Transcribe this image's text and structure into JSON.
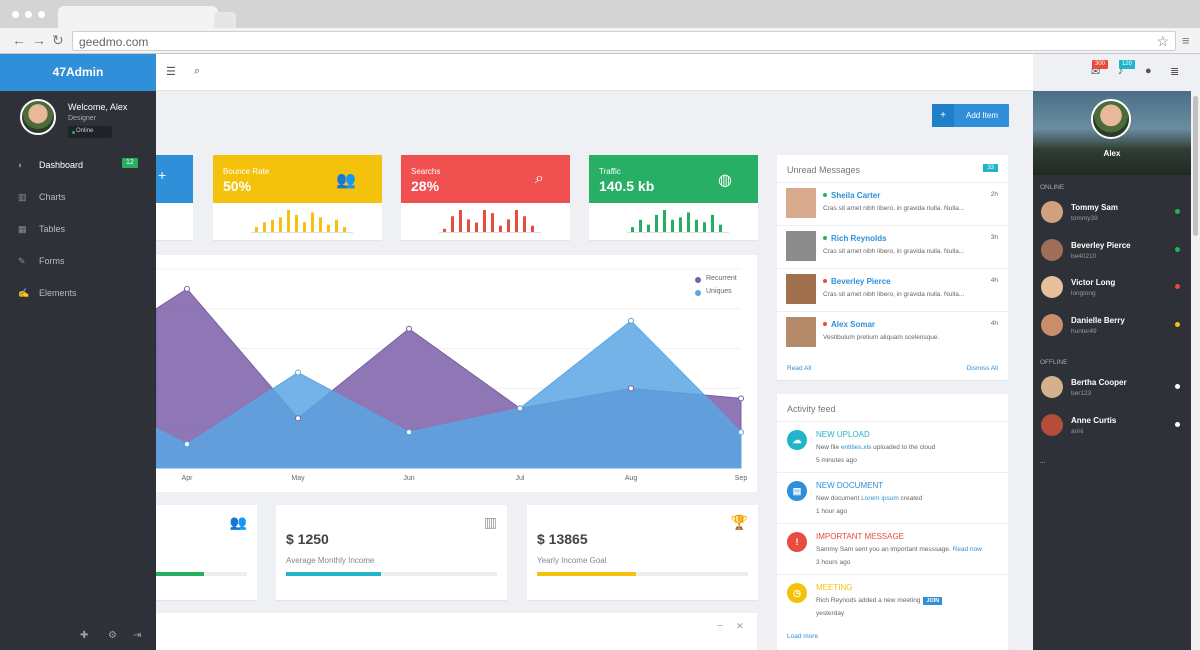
{
  "browser": {
    "url": "geedmo.com"
  },
  "app": {
    "brand": "47Admin",
    "user": {
      "welcome": "Welcome, Alex",
      "role": "Designer",
      "status": "Online"
    },
    "nav": [
      {
        "label": "Dashboard",
        "icon": "dashboard-icon",
        "glyph": "◐",
        "badge": "12",
        "active": true
      },
      {
        "label": "Charts",
        "icon": "chart-icon",
        "glyph": "▥",
        "badge": "",
        "active": false
      },
      {
        "label": "Tables",
        "icon": "table-icon",
        "glyph": "▦",
        "badge": "",
        "active": false
      },
      {
        "label": "Forms",
        "icon": "edit-icon",
        "glyph": "✎",
        "badge": "",
        "active": false
      },
      {
        "label": "Elements",
        "icon": "wrench-icon",
        "glyph": "✍",
        "badge": "",
        "active": false
      }
    ],
    "topbar": {
      "mail_count": "300",
      "notif_count": "120"
    },
    "add_item_label": "Add Item"
  },
  "stats": [
    {
      "label": "Bounce Rate",
      "value": "50%",
      "color": "#f4c20d",
      "bar": "#f4c20d",
      "icon": "users-icon",
      "glyph": "👥",
      "spark": [
        2,
        4,
        5,
        6,
        9,
        7,
        4,
        8,
        6,
        3,
        5,
        2
      ]
    },
    {
      "label": "Searchs",
      "value": "28%",
      "color": "#f05050",
      "bar": "#e74c3c",
      "icon": "search-icon",
      "glyph": "⌕",
      "spark": [
        1,
        5,
        7,
        4,
        3,
        7,
        6,
        2,
        4,
        7,
        5,
        2
      ]
    },
    {
      "label": "Traffic",
      "value": "140.5 kb",
      "color": "#27b065",
      "bar": "#27ae60",
      "icon": "globe-icon",
      "glyph": "◍",
      "spark": [
        2,
        5,
        3,
        7,
        9,
        5,
        6,
        8,
        5,
        4,
        7,
        3
      ]
    }
  ],
  "chart_data": {
    "type": "area",
    "categories": [
      "Apr",
      "May",
      "Jun",
      "Jul",
      "Aug",
      "Sep"
    ],
    "series": [
      {
        "name": "Recurrent",
        "color": "#7b5ea7",
        "values": [
          90,
          25,
          70,
          30,
          40,
          35
        ]
      },
      {
        "name": "Uniques",
        "color": "#5aa6e3",
        "values": [
          12,
          48,
          18,
          30,
          74,
          18
        ]
      }
    ],
    "ylim": [
      0,
      100
    ]
  },
  "income": [
    {
      "value": "$ 1250",
      "label": "Average Monthly Income",
      "progress": 0.45,
      "color": "#22b4c9",
      "icon": "bar-chart-icon",
      "glyph": "▥"
    },
    {
      "value": "$ 13865",
      "label": "Yearly Income Goal",
      "progress": 0.47,
      "color": "#f4c20d",
      "icon": "trophy-icon",
      "glyph": "🏆"
    }
  ],
  "messages": {
    "title": "Unread Messages",
    "count": "33",
    "items": [
      {
        "name": "Sheila Carter",
        "text": "Cras sit amet nibh libero, in gravida nulla. Nulla...",
        "time": "2h",
        "status": "#27ae60",
        "avatar": "#d9a98d"
      },
      {
        "name": "Rich Reynolds",
        "text": "Cras sit amet nibh libero, in gravida nulla. Nulla...",
        "time": "3h",
        "status": "#27ae60",
        "avatar": "#8c8c8c"
      },
      {
        "name": "Beverley Pierce",
        "text": "Cras sit amet nibh libero, in gravida nulla. Nulla...",
        "time": "4h",
        "status": "#e74c3c",
        "avatar": "#a0704f"
      },
      {
        "name": "Alex Somar",
        "text": "Vestibulum pretium aliquam scelerisque.",
        "time": "4h",
        "status": "#e74c3c",
        "avatar": "#b58a6a"
      }
    ],
    "read_all": "Read All",
    "dismiss_all": "Dismiss All"
  },
  "activity": {
    "title": "Activity feed",
    "items": [
      {
        "title": "NEW UPLOAD",
        "color": "#22b4c9",
        "glyph": "☁",
        "desc_pre": "New file ",
        "link": "entities.xls",
        "desc_post": " uploaded to the cloud",
        "time": "5 minutes ago"
      },
      {
        "title": "NEW DOCUMENT",
        "color": "#2f8fd8",
        "glyph": "▤",
        "desc_pre": "New document ",
        "link": "Lorem ipsum",
        "desc_post": " created",
        "time": "1 hour ago"
      },
      {
        "title": "IMPORTANT MESSAGE",
        "color": "#e74c3c",
        "glyph": "!",
        "desc_pre": "Sammy Sam sent you an important messsage. ",
        "link": "Read now",
        "desc_post": "",
        "time": "3 hours ago"
      },
      {
        "title": "MEETING",
        "color": "#f4c20d",
        "glyph": "◷",
        "desc_pre": "Rich Reynods added a new meeting",
        "link": "",
        "desc_post": "",
        "join": "JOIN",
        "time": "yesterday"
      }
    ],
    "load_more": "Load more"
  },
  "chat": {
    "name": "Alex",
    "online_label": "ONLINE",
    "offline_label": "OFFLINE",
    "online": [
      {
        "name": "Tommy Sam",
        "handle": "tommy39",
        "status": "#27ae60",
        "avatar": "#d1a17f"
      },
      {
        "name": "Beverley Pierce",
        "handle": "be40210",
        "status": "#27ae60",
        "avatar": "#a06e58"
      },
      {
        "name": "Victor Long",
        "handle": "longlong",
        "status": "#e74c3c",
        "avatar": "#e6c09a"
      },
      {
        "name": "Danielle Berry",
        "handle": "hunter49",
        "status": "#f4c20d",
        "avatar": "#c98e6a"
      }
    ],
    "offline": [
      {
        "name": "Bertha Cooper",
        "handle": "ber123",
        "status": "#ffffff",
        "avatar": "#d5b08d"
      },
      {
        "name": "Anne Curtis",
        "handle": "anni",
        "status": "#ffffff",
        "avatar": "#b44d3c"
      }
    ],
    "more": "..."
  }
}
